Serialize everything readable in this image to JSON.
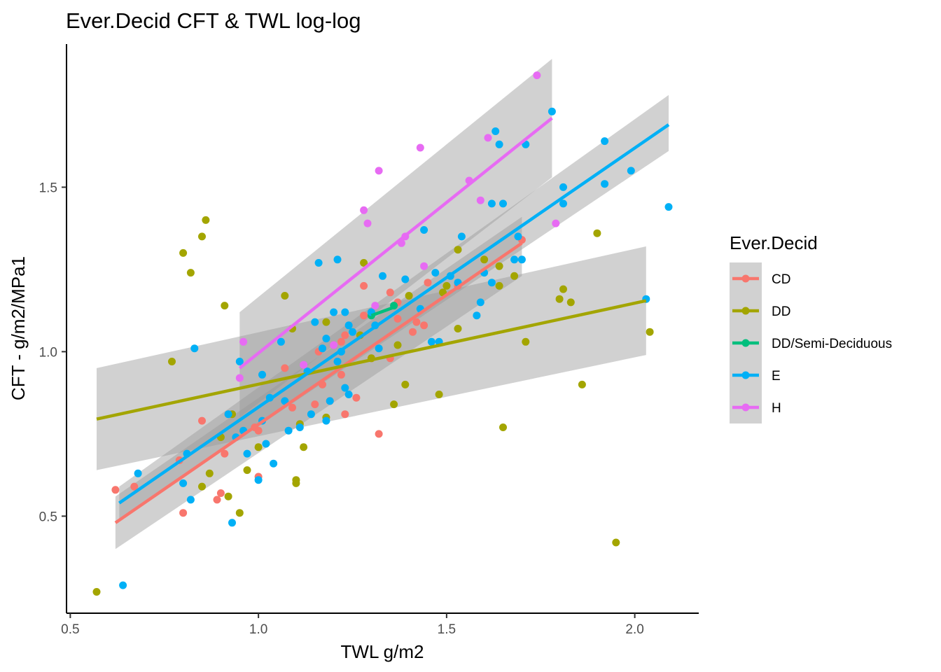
{
  "chart_data": {
    "type": "scatter",
    "title": "Ever.Decid CFT & TWL log-log",
    "xlabel": "TWL g/m2",
    "ylabel": "CFT - g/m2/MPa1",
    "xlim": [
      0.49,
      2.17
    ],
    "ylim": [
      0.205,
      1.935
    ],
    "x_ticks": [
      0.5,
      1.0,
      1.5,
      2.0
    ],
    "x_tick_labels": [
      "0.5",
      "1.0",
      "1.5",
      "2.0"
    ],
    "y_ticks": [
      0.5,
      1.0,
      1.5
    ],
    "y_tick_labels": [
      "0.5",
      "1.0",
      "1.5"
    ],
    "grid": false,
    "legend": {
      "title": "Ever.Decid",
      "position": "right"
    },
    "series": [
      {
        "name": "CD",
        "color": "#F8766D",
        "points": [
          [
            0.62,
            0.58
          ],
          [
            0.67,
            0.59
          ],
          [
            0.79,
            0.67
          ],
          [
            0.8,
            0.51
          ],
          [
            0.85,
            0.79
          ],
          [
            0.89,
            0.55
          ],
          [
            0.9,
            0.57
          ],
          [
            0.91,
            0.69
          ],
          [
            0.92,
            0.81
          ],
          [
            0.99,
            0.77
          ],
          [
            1.0,
            0.76
          ],
          [
            1.0,
            0.62
          ],
          [
            1.07,
            0.95
          ],
          [
            1.09,
            0.83
          ],
          [
            1.15,
            0.84
          ],
          [
            1.17,
            0.9
          ],
          [
            1.19,
            0.85
          ],
          [
            1.2,
            1.02
          ],
          [
            1.22,
            1.03
          ],
          [
            1.22,
            0.93
          ],
          [
            1.23,
            1.05
          ],
          [
            1.23,
            0.81
          ],
          [
            1.26,
            0.86
          ],
          [
            1.28,
            1.11
          ],
          [
            1.28,
            1.2
          ],
          [
            1.3,
            0.98
          ],
          [
            1.32,
            0.75
          ],
          [
            1.35,
            1.18
          ],
          [
            1.35,
            0.98
          ],
          [
            1.37,
            1.15
          ],
          [
            1.37,
            1.1
          ],
          [
            1.41,
            1.06
          ],
          [
            1.42,
            1.09
          ],
          [
            1.44,
            1.08
          ],
          [
            1.45,
            1.21
          ],
          [
            1.53,
            1.2
          ],
          [
            1.7,
            1.34
          ],
          [
            1.16,
            1.0
          ]
        ],
        "fit": {
          "x": [
            0.62,
            1.7
          ],
          "y": [
            0.48,
            1.33
          ],
          "ci_low": [
            0.4,
            1.23
          ],
          "ci_high": [
            0.56,
            1.41
          ]
        }
      },
      {
        "name": "DD",
        "color": "#A3A500",
        "points": [
          [
            0.57,
            0.27
          ],
          [
            0.77,
            0.97
          ],
          [
            0.8,
            1.3
          ],
          [
            0.82,
            1.24
          ],
          [
            0.85,
            1.35
          ],
          [
            0.86,
            1.4
          ],
          [
            0.85,
            0.59
          ],
          [
            0.87,
            0.63
          ],
          [
            0.9,
            0.74
          ],
          [
            0.91,
            1.14
          ],
          [
            0.92,
            0.56
          ],
          [
            0.93,
            0.81
          ],
          [
            0.95,
            0.51
          ],
          [
            0.97,
            0.64
          ],
          [
            1.0,
            0.71
          ],
          [
            1.07,
            1.17
          ],
          [
            1.09,
            1.07
          ],
          [
            1.1,
            0.6
          ],
          [
            1.1,
            0.61
          ],
          [
            1.11,
            0.78
          ],
          [
            1.12,
            0.71
          ],
          [
            1.18,
            0.8
          ],
          [
            1.18,
            1.09
          ],
          [
            1.27,
            1.05
          ],
          [
            1.28,
            1.27
          ],
          [
            1.3,
            0.98
          ],
          [
            1.36,
            0.84
          ],
          [
            1.37,
            1.02
          ],
          [
            1.39,
            0.9
          ],
          [
            1.4,
            1.17
          ],
          [
            1.48,
            0.87
          ],
          [
            1.49,
            1.18
          ],
          [
            1.5,
            1.2
          ],
          [
            1.53,
            1.07
          ],
          [
            1.53,
            1.31
          ],
          [
            1.6,
            1.28
          ],
          [
            1.64,
            1.2
          ],
          [
            1.64,
            1.26
          ],
          [
            1.65,
            0.77
          ],
          [
            1.68,
            1.23
          ],
          [
            1.71,
            1.03
          ],
          [
            1.8,
            1.16
          ],
          [
            1.81,
            1.19
          ],
          [
            1.83,
            1.15
          ],
          [
            1.86,
            0.9
          ],
          [
            1.9,
            1.36
          ],
          [
            1.95,
            0.42
          ],
          [
            2.04,
            1.06
          ]
        ],
        "fit": {
          "x": [
            0.57,
            2.03
          ],
          "y": [
            0.795,
            1.155
          ],
          "ci_low": [
            0.64,
            0.99
          ],
          "ci_high": [
            0.95,
            1.32
          ]
        }
      },
      {
        "name": "DD/Semi-Deciduous",
        "color": "#00BF7D",
        "points": [
          [
            1.3,
            1.11
          ],
          [
            1.36,
            1.14
          ]
        ],
        "fit": {
          "x": [
            1.3,
            1.36
          ],
          "y": [
            1.11,
            1.135
          ]
        }
      },
      {
        "name": "E",
        "color": "#00B0F6",
        "points": [
          [
            0.64,
            0.29
          ],
          [
            0.68,
            0.63
          ],
          [
            0.8,
            0.6
          ],
          [
            0.81,
            0.69
          ],
          [
            0.82,
            0.55
          ],
          [
            0.83,
            1.01
          ],
          [
            0.92,
            0.81
          ],
          [
            0.93,
            0.48
          ],
          [
            0.94,
            0.74
          ],
          [
            0.95,
            0.97
          ],
          [
            0.96,
            0.76
          ],
          [
            0.97,
            0.69
          ],
          [
            1.0,
            0.61
          ],
          [
            1.01,
            0.93
          ],
          [
            1.01,
            0.79
          ],
          [
            1.02,
            0.72
          ],
          [
            1.03,
            0.86
          ],
          [
            1.04,
            0.66
          ],
          [
            1.06,
            1.03
          ],
          [
            1.07,
            0.85
          ],
          [
            1.08,
            0.76
          ],
          [
            1.11,
            0.77
          ],
          [
            1.13,
            0.94
          ],
          [
            1.14,
            0.81
          ],
          [
            1.15,
            1.09
          ],
          [
            1.16,
            1.27
          ],
          [
            1.17,
            1.01
          ],
          [
            1.18,
            0.79
          ],
          [
            1.18,
            1.04
          ],
          [
            1.19,
            0.85
          ],
          [
            1.2,
            1.12
          ],
          [
            1.21,
            1.28
          ],
          [
            1.21,
            0.97
          ],
          [
            1.22,
            1.0
          ],
          [
            1.23,
            0.89
          ],
          [
            1.23,
            1.12
          ],
          [
            1.24,
            0.87
          ],
          [
            1.24,
            1.08
          ],
          [
            1.25,
            1.06
          ],
          [
            1.3,
            1.12
          ],
          [
            1.31,
            1.08
          ],
          [
            1.32,
            1.01
          ],
          [
            1.33,
            1.23
          ],
          [
            1.39,
            1.22
          ],
          [
            1.43,
            1.13
          ],
          [
            1.44,
            1.37
          ],
          [
            1.46,
            1.03
          ],
          [
            1.47,
            1.24
          ],
          [
            1.48,
            1.03
          ],
          [
            1.51,
            1.23
          ],
          [
            1.53,
            1.21
          ],
          [
            1.54,
            1.35
          ],
          [
            1.58,
            1.11
          ],
          [
            1.59,
            1.15
          ],
          [
            1.6,
            1.24
          ],
          [
            1.62,
            1.21
          ],
          [
            1.62,
            1.45
          ],
          [
            1.63,
            1.67
          ],
          [
            1.64,
            1.63
          ],
          [
            1.65,
            1.45
          ],
          [
            1.68,
            1.28
          ],
          [
            1.69,
            1.35
          ],
          [
            1.7,
            1.28
          ],
          [
            1.71,
            1.63
          ],
          [
            1.78,
            1.73
          ],
          [
            1.81,
            1.5
          ],
          [
            1.81,
            1.45
          ],
          [
            1.92,
            1.51
          ],
          [
            1.92,
            1.64
          ],
          [
            1.99,
            1.55
          ],
          [
            2.03,
            1.16
          ],
          [
            2.09,
            1.44
          ]
        ],
        "fit": {
          "x": [
            0.63,
            2.09
          ],
          "y": [
            0.54,
            1.69
          ],
          "ci_low": [
            0.49,
            1.61
          ],
          "ci_high": [
            0.59,
            1.78
          ]
        }
      },
      {
        "name": "H",
        "color": "#E76BF3",
        "points": [
          [
            0.95,
            0.92
          ],
          [
            0.96,
            1.03
          ],
          [
            1.12,
            0.96
          ],
          [
            1.2,
            1.02
          ],
          [
            1.28,
            1.43
          ],
          [
            1.29,
            1.39
          ],
          [
            1.31,
            1.14
          ],
          [
            1.32,
            1.55
          ],
          [
            1.38,
            1.33
          ],
          [
            1.39,
            1.35
          ],
          [
            1.43,
            1.62
          ],
          [
            1.44,
            1.26
          ],
          [
            1.56,
            1.52
          ],
          [
            1.59,
            1.46
          ],
          [
            1.61,
            1.65
          ],
          [
            1.74,
            1.84
          ],
          [
            1.79,
            1.39
          ]
        ],
        "fit": {
          "x": [
            0.95,
            1.78
          ],
          "y": [
            0.95,
            1.71
          ],
          "ci_low": [
            0.8,
            1.53
          ],
          "ci_high": [
            1.12,
            1.89
          ]
        }
      }
    ]
  }
}
